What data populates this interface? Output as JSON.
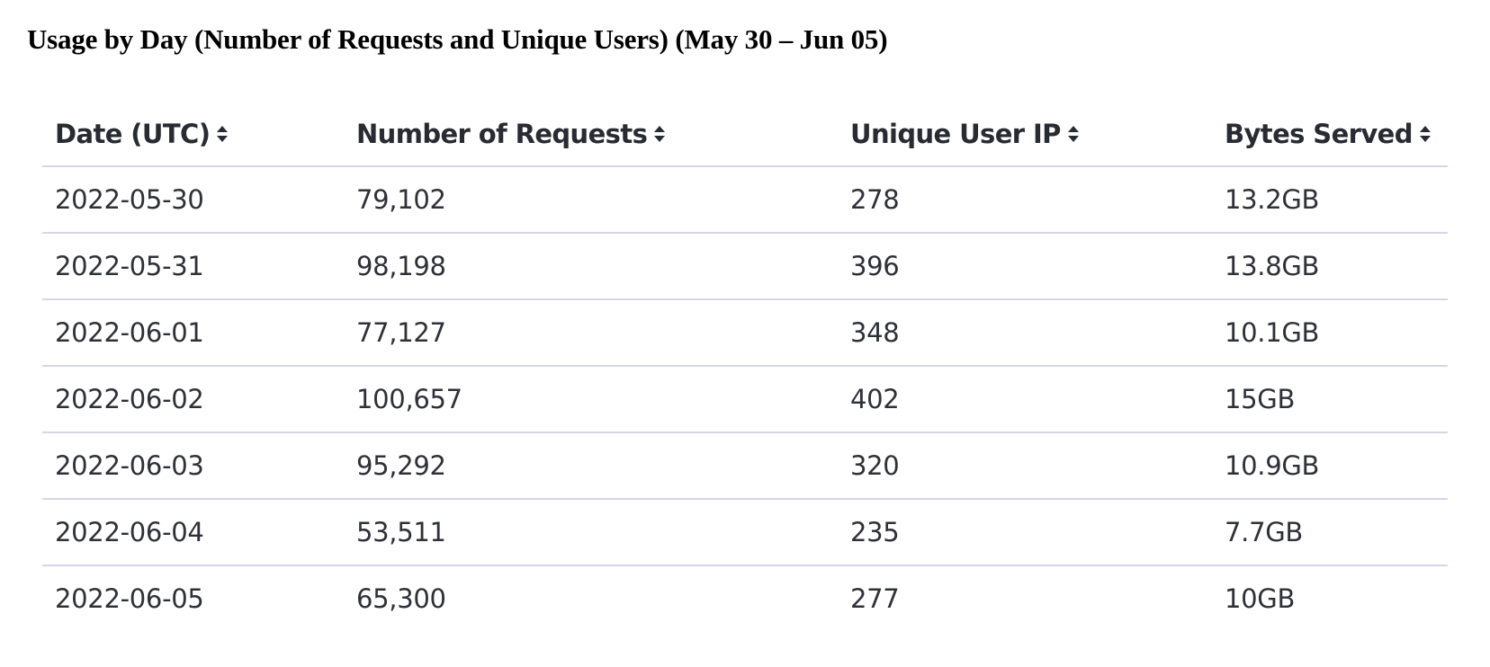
{
  "title": "Usage by Day (Number of Requests and Unique Users) (May 30 – Jun 05)",
  "table": {
    "headers": [
      {
        "label": "Date (UTC)",
        "icon": "sort-icon"
      },
      {
        "label": "Number of Requests",
        "icon": "sort-icon"
      },
      {
        "label": "Unique User IP",
        "icon": "sort-icon"
      },
      {
        "label": "Bytes Served",
        "icon": "sort-icon"
      }
    ],
    "rows": [
      [
        "2022-05-30",
        "79,102",
        "278",
        "13.2GB"
      ],
      [
        "2022-05-31",
        "98,198",
        "396",
        "13.8GB"
      ],
      [
        "2022-06-01",
        "77,127",
        "348",
        "10.1GB"
      ],
      [
        "2022-06-02",
        "100,657",
        "402",
        "15GB"
      ],
      [
        "2022-06-03",
        "95,292",
        "320",
        "10.9GB"
      ],
      [
        "2022-06-04",
        "53,511",
        "235",
        "7.7GB"
      ],
      [
        "2022-06-05",
        "65,300",
        "277",
        "10GB"
      ]
    ]
  },
  "colors": {
    "header_text": "#292b33",
    "row_border": "#d3d7e6",
    "title": "#000000"
  }
}
